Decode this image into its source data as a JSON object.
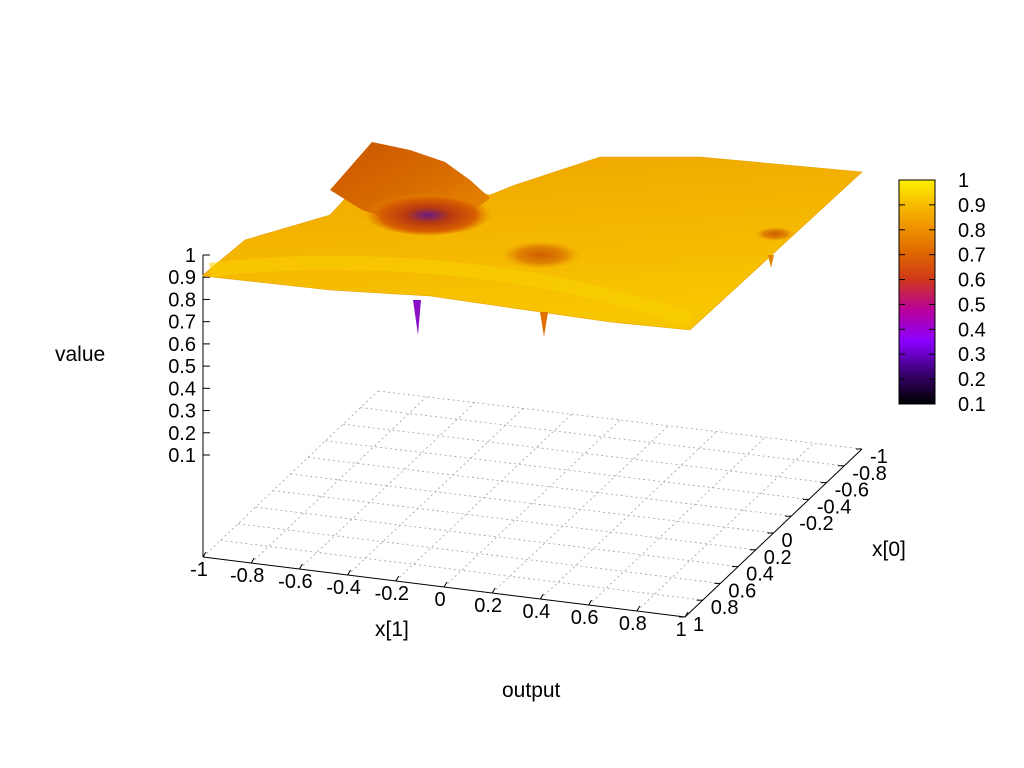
{
  "chart_data": {
    "type": "surface",
    "title": "output",
    "xlabel": "x[1]",
    "ylabel": "x[0]",
    "zlabel": "value",
    "xlim": [
      -1,
      1
    ],
    "ylim": [
      -1,
      1
    ],
    "zlim": [
      0.1,
      1
    ],
    "x_ticks": [
      "-1",
      "-0.8",
      "-0.6",
      "-0.4",
      "-0.2",
      "0",
      "0.2",
      "0.4",
      "0.6",
      "0.8",
      "1"
    ],
    "y_ticks": [
      "-1",
      "-0.8",
      "-0.6",
      "-0.4",
      "-0.2",
      "0",
      "0.2",
      "0.4",
      "0.6",
      "0.8",
      "1"
    ],
    "z_ticks": [
      "1",
      "0.9",
      "0.8",
      "0.7",
      "0.6",
      "0.5",
      "0.4",
      "0.3",
      "0.2",
      "0.1"
    ],
    "colorbar": {
      "range": [
        0.1,
        1
      ],
      "ticks": [
        "1",
        "0.9",
        "0.8",
        "0.7",
        "0.6",
        "0.5",
        "0.4",
        "0.3",
        "0.2",
        "0.1"
      ],
      "palette": [
        "#000000",
        "#3b0074",
        "#8a00ff",
        "#b8009a",
        "#d03a18",
        "#e06a00",
        "#ef9800",
        "#f7c000",
        "#fff000"
      ]
    },
    "base_level": 0.9,
    "features": [
      {
        "kind": "ridge-dip",
        "x": -0.3,
        "y": -0.5,
        "min_value": 0.35
      },
      {
        "kind": "dip",
        "x": 0.3,
        "y": -0.2,
        "min_value": 0.7
      },
      {
        "kind": "dip",
        "x": 0.9,
        "y": -0.55,
        "min_value": 0.8
      }
    ],
    "grid": true
  }
}
